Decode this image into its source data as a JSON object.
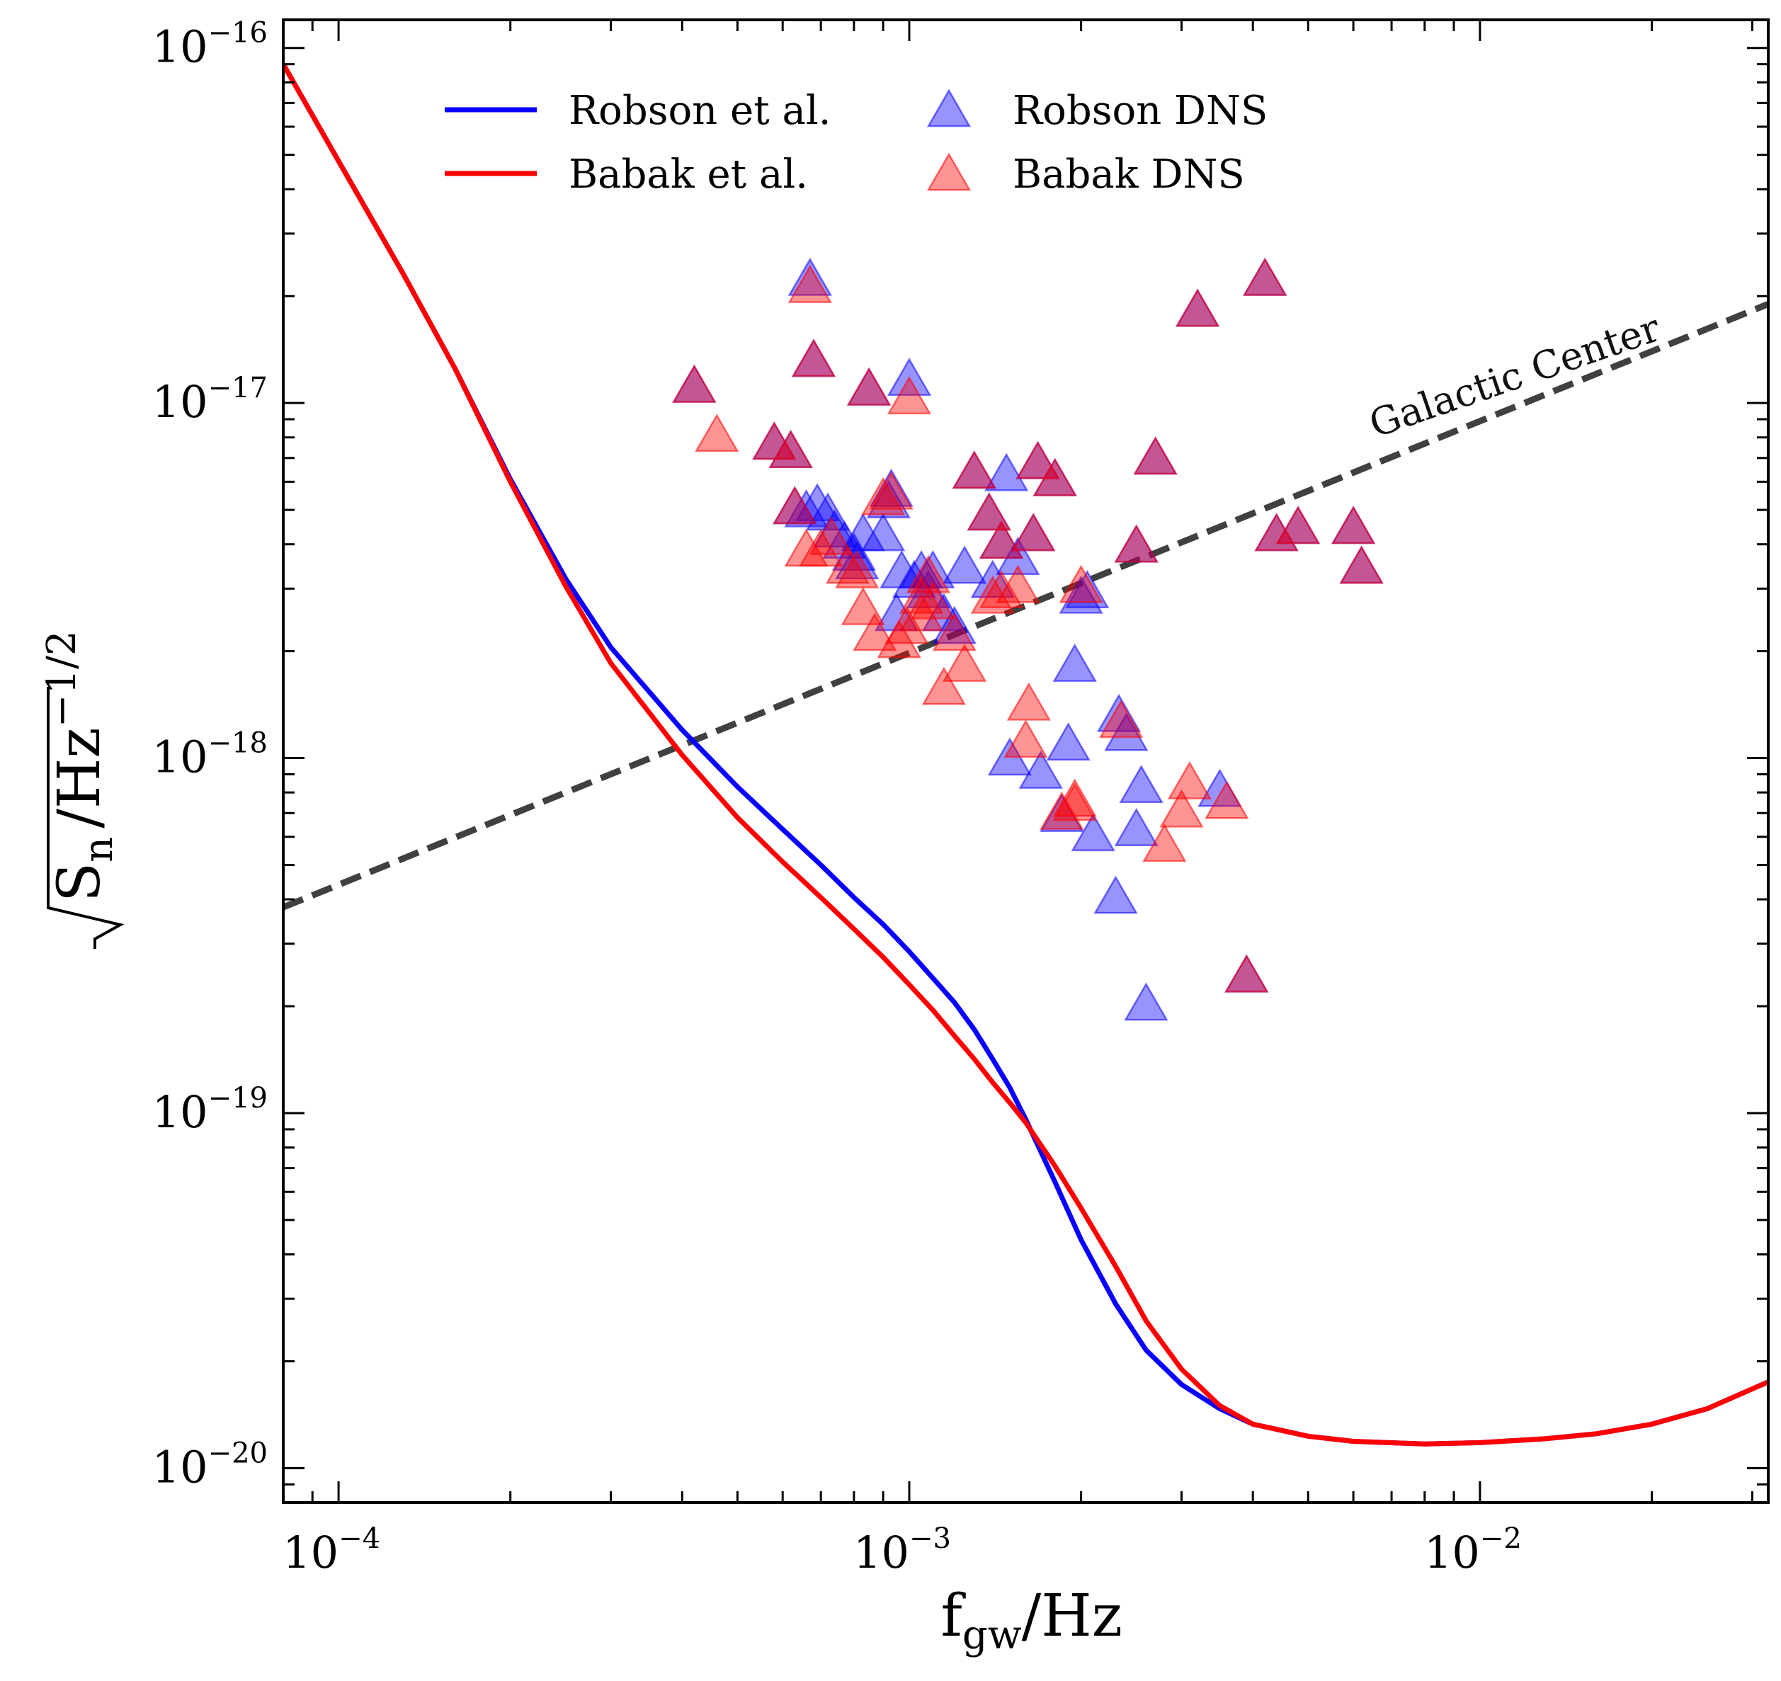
{
  "chart_data": {
    "type": "line",
    "title": "",
    "xlabel": {
      "base": "f",
      "sub": "gw",
      "rest": "/Hz"
    },
    "ylabel": {
      "sqrt_base": "S",
      "sqrt_sub": "n",
      "rest": "/Hz",
      "sup": "−1/2"
    },
    "x_scale": "log",
    "y_scale": "log",
    "xlim": [
      8e-05,
      0.032
    ],
    "ylim": [
      8e-21,
      1.2e-16
    ],
    "grid": false,
    "legend_position": "upper-center",
    "x_ticks": [
      {
        "value": 0.0001,
        "base": "10",
        "exp": "−4"
      },
      {
        "value": 0.001,
        "base": "10",
        "exp": "−3"
      },
      {
        "value": 0.01,
        "base": "10",
        "exp": "−2"
      }
    ],
    "y_ticks": [
      {
        "value": 1e-20,
        "base": "10",
        "exp": "−20"
      },
      {
        "value": 1e-19,
        "base": "10",
        "exp": "−19"
      },
      {
        "value": 1e-18,
        "base": "10",
        "exp": "−18"
      },
      {
        "value": 1e-17,
        "base": "10",
        "exp": "−17"
      },
      {
        "value": 1e-16,
        "base": "10",
        "exp": "−16"
      }
    ],
    "series": [
      {
        "name": "Robson et al.",
        "kind": "line",
        "color": "#0a00ff",
        "x": [
          8e-05,
          0.0001,
          0.00013,
          0.00016,
          0.0002,
          0.00025,
          0.0003,
          0.0004,
          0.0005,
          0.0006,
          0.0007,
          0.0008,
          0.0009,
          0.001,
          0.0011,
          0.0012,
          0.0013,
          0.0014,
          0.0015,
          0.0016,
          0.0018,
          0.002,
          0.0023,
          0.0026,
          0.003,
          0.0035,
          0.004,
          0.005,
          0.006,
          0.008,
          0.01,
          0.013,
          0.016,
          0.02,
          0.025,
          0.032
        ],
        "y": [
          9e-17,
          4.8e-17,
          2.3e-17,
          1.25e-17,
          6.1e-18,
          3.2e-18,
          2.05e-18,
          1.2e-18,
          8.3e-19,
          6.3e-19,
          5e-19,
          4.05e-19,
          3.4e-19,
          2.85e-19,
          2.4e-19,
          2.05e-19,
          1.72e-19,
          1.42e-19,
          1.18e-19,
          9.6e-20,
          6.4e-20,
          4.4e-20,
          2.9e-20,
          2.15e-20,
          1.72e-20,
          1.47e-20,
          1.33e-20,
          1.23e-20,
          1.19e-20,
          1.17e-20,
          1.18e-20,
          1.21e-20,
          1.25e-20,
          1.33e-20,
          1.47e-20,
          1.75e-20
        ]
      },
      {
        "name": "Babak et al.",
        "kind": "line",
        "color": "#ff0000",
        "x": [
          8e-05,
          0.0001,
          0.00013,
          0.00016,
          0.0002,
          0.00025,
          0.0003,
          0.0004,
          0.0005,
          0.0006,
          0.0007,
          0.0008,
          0.0009,
          0.001,
          0.0011,
          0.0012,
          0.0013,
          0.0014,
          0.0015,
          0.0016,
          0.0018,
          0.002,
          0.0023,
          0.0026,
          0.003,
          0.0035,
          0.004,
          0.005,
          0.006,
          0.008,
          0.01,
          0.013,
          0.016,
          0.02,
          0.025,
          0.032
        ],
        "y": [
          9e-17,
          4.8e-17,
          2.3e-17,
          1.25e-17,
          6e-18,
          3.05e-18,
          1.85e-18,
          1.02e-18,
          6.8e-19,
          5.1e-19,
          4.05e-19,
          3.3e-19,
          2.75e-19,
          2.3e-19,
          1.95e-19,
          1.65e-19,
          1.42e-19,
          1.22e-19,
          1.07e-19,
          9.4e-20,
          7.1e-20,
          5.4e-20,
          3.7e-20,
          2.6e-20,
          1.9e-20,
          1.5e-20,
          1.33e-20,
          1.23e-20,
          1.19e-20,
          1.17e-20,
          1.18e-20,
          1.21e-20,
          1.25e-20,
          1.33e-20,
          1.47e-20,
          1.75e-20
        ]
      },
      {
        "name": "Robson DNS",
        "kind": "scatter",
        "marker": "triangle",
        "color": "#0a00ff",
        "x": [
          0.00042,
          0.00058,
          0.00062,
          0.00067,
          0.00068,
          0.00063,
          0.00066,
          0.00069,
          0.00072,
          0.00074,
          0.00077,
          0.0008,
          0.00081,
          0.00083,
          0.00085,
          0.00092,
          0.00093,
          0.00095,
          0.00097,
          0.001,
          0.00102,
          0.00105,
          0.00108,
          0.0011,
          0.00115,
          0.0012,
          0.00125,
          0.0013,
          0.00138,
          0.0014,
          0.00145,
          0.00148,
          0.00155,
          0.00165,
          0.00168,
          0.0018,
          0.00195,
          0.0025,
          0.0027,
          0.0032,
          0.0042,
          0.0044,
          0.0048,
          0.006,
          0.0062,
          0.0039,
          0.0015,
          0.0017,
          0.00185,
          0.0019,
          0.002,
          0.0021,
          0.0023,
          0.0024,
          0.0025,
          0.0026,
          0.0035,
          0.00233,
          0.00255,
          0.0009,
          0.00205
        ],
        "y": [
          1.1e-17,
          7.6e-18,
          7.2e-18,
          2.2e-17,
          1.3e-17,
          5e-18,
          4.9e-18,
          5.1e-18,
          4.8e-18,
          4.3e-18,
          4e-18,
          3.7e-18,
          3.5e-18,
          4.2e-18,
          1.08e-17,
          5.2e-18,
          5.6e-18,
          2.5e-18,
          3.3e-18,
          1.15e-17,
          3.1e-18,
          3.3e-18,
          2.9e-18,
          3.3e-18,
          2.5e-18,
          2.3e-18,
          3.4e-18,
          6.3e-18,
          4.8e-18,
          3.1e-18,
          4e-18,
          6.2e-18,
          3.6e-18,
          4.2e-18,
          6.7e-18,
          6e-18,
          1.8e-18,
          3.9e-18,
          6.9e-18,
          1.8e-17,
          2.2e-17,
          4.2e-18,
          4.4e-18,
          4.4e-18,
          3.4e-18,
          2.4e-19,
          9.8e-19,
          9e-19,
          6.8e-19,
          1.08e-18,
          2.8e-18,
          6e-19,
          4e-19,
          1.15e-18,
          6.2e-19,
          2e-19,
          8e-19,
          1.3e-18,
          8.2e-19,
          4.2e-18,
          2.9e-18
        ]
      },
      {
        "name": "Babak DNS",
        "kind": "scatter",
        "marker": "triangle",
        "color": "#ff0000",
        "x": [
          0.00042,
          0.00046,
          0.00058,
          0.00062,
          0.00067,
          0.00068,
          0.00063,
          0.00066,
          0.0007,
          0.00073,
          0.00078,
          0.00081,
          0.00083,
          0.00085,
          0.00087,
          0.0009,
          0.00093,
          0.00096,
          0.00099,
          0.001,
          0.00105,
          0.00108,
          0.0011,
          0.00115,
          0.0012,
          0.00125,
          0.0013,
          0.00138,
          0.0014,
          0.00145,
          0.00155,
          0.00165,
          0.00168,
          0.0018,
          0.00195,
          0.002,
          0.0025,
          0.0027,
          0.0032,
          0.0042,
          0.0044,
          0.0048,
          0.006,
          0.0062,
          0.0039,
          0.00145,
          0.0016,
          0.00162,
          0.00185,
          0.00195,
          0.00235,
          0.0028,
          0.003,
          0.0031,
          0.0036,
          0.00105
        ],
        "y": [
          1.1e-17,
          8e-18,
          7.6e-18,
          7.2e-18,
          2.1e-17,
          1.3e-17,
          5e-18,
          3.8e-18,
          3.8e-18,
          4.1e-18,
          3.4e-18,
          3.3e-18,
          2.6e-18,
          1.08e-17,
          2.2e-18,
          5.3e-18,
          5.5e-18,
          2.1e-18,
          2.3e-18,
          1.02e-17,
          2.8e-18,
          3.2e-18,
          2.7e-18,
          1.55e-18,
          2.2e-18,
          1.8e-18,
          6.3e-18,
          4.8e-18,
          2.8e-18,
          4e-18,
          3e-18,
          4.2e-18,
          6.7e-18,
          6e-18,
          7.3e-19,
          3e-18,
          3.9e-18,
          6.9e-18,
          1.8e-17,
          2.2e-17,
          4.2e-18,
          4.4e-18,
          4.4e-18,
          3.4e-18,
          2.4e-19,
          2.9e-18,
          1.1e-18,
          1.4e-18,
          6.9e-19,
          7.5e-19,
          1.25e-18,
          5.6e-19,
          7e-19,
          8.4e-19,
          7.4e-19,
          2.5e-18
        ]
      },
      {
        "name": "Galactic Center",
        "kind": "reference-line",
        "color": "#404040",
        "x": [
          8e-05,
          0.032
        ],
        "y": [
          3.8e-19,
          1.9e-17
        ]
      }
    ],
    "annotations": [
      {
        "text": "Galactic Center",
        "x": 0.0117,
        "y": 1.1e-17,
        "rotation_deg": -19
      }
    ]
  }
}
